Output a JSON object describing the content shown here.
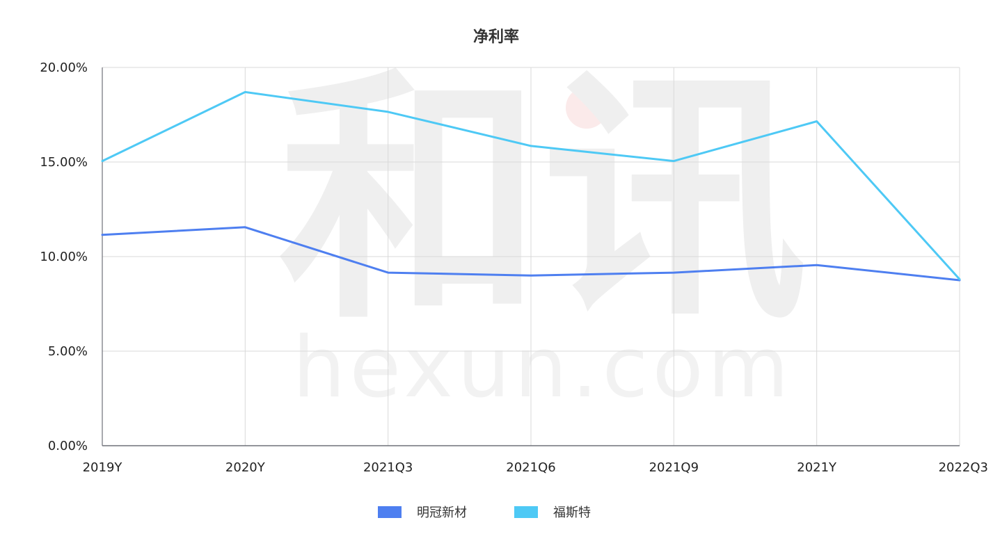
{
  "watermark": {
    "logo": "和讯",
    "domain": "hexun.com"
  },
  "chart_data": {
    "type": "line",
    "title": "净利率",
    "xlabel": "",
    "ylabel": "",
    "categories": [
      "2019Y",
      "2020Y",
      "2021Q3",
      "2021Q6",
      "2021Q9",
      "2021Y",
      "2022Q3"
    ],
    "ylim": [
      0,
      20
    ],
    "yticks": [
      0,
      5,
      10,
      15,
      20
    ],
    "ytick_labels": [
      "0.00%",
      "5.00%",
      "10.00%",
      "15.00%",
      "20.00%"
    ],
    "grid": true,
    "legend_position": "bottom-center",
    "series": [
      {
        "name": "明冠新材",
        "color": "#4e7ff0",
        "values": [
          11.15,
          11.55,
          9.15,
          9.0,
          9.15,
          9.55,
          8.75
        ]
      },
      {
        "name": "福斯特",
        "color": "#4ec9f5",
        "values": [
          15.05,
          18.7,
          17.65,
          15.85,
          15.05,
          17.15,
          8.8
        ]
      }
    ]
  }
}
